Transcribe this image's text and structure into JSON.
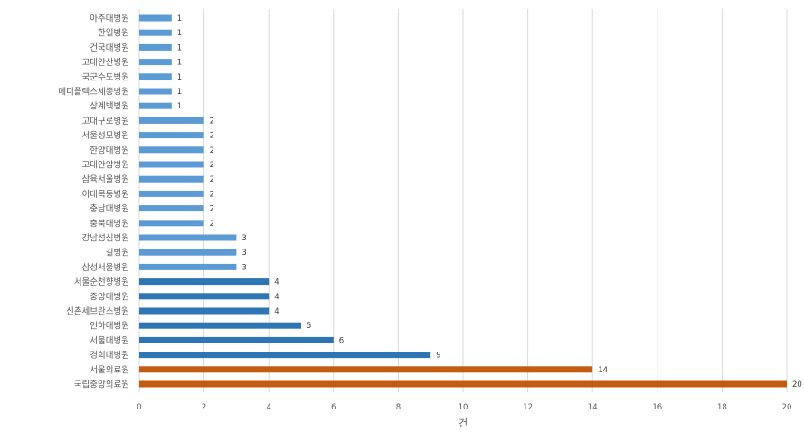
{
  "chart_data": {
    "type": "bar",
    "orientation": "horizontal",
    "title": "",
    "xlabel": "건",
    "ylabel": "",
    "xlim": [
      0,
      20
    ],
    "xticks": [
      0,
      2,
      4,
      6,
      8,
      10,
      12,
      14,
      16,
      18,
      20
    ],
    "grid": true,
    "categories": [
      "아주대병원",
      "한일병원",
      "건국대병원",
      "고대안산병원",
      "국군수도병원",
      "메디플렉스세종병원",
      "상계백병원",
      "고대구로병원",
      "서울성모병원",
      "한양대병원",
      "고대안암병원",
      "삼육서울병원",
      "이대목동병원",
      "충남대병원",
      "충북대병원",
      "강남성심병원",
      "길병원",
      "삼성서울병원",
      "서울순천향병원",
      "중앙대병원",
      "신촌세브란스병원",
      "인하대병원",
      "서울대병원",
      "경희대병원",
      "서울의료원",
      "국립중앙의료원"
    ],
    "values": [
      1,
      1,
      1,
      1,
      1,
      1,
      1,
      2,
      2,
      2,
      2,
      2,
      2,
      2,
      2,
      3,
      3,
      3,
      4,
      4,
      4,
      5,
      6,
      9,
      14,
      20
    ],
    "colors": {
      "light": "#5b9bd5",
      "dark": "#2e75b6",
      "orange": "#c55a11",
      "grid": "#d9d9d9"
    }
  }
}
